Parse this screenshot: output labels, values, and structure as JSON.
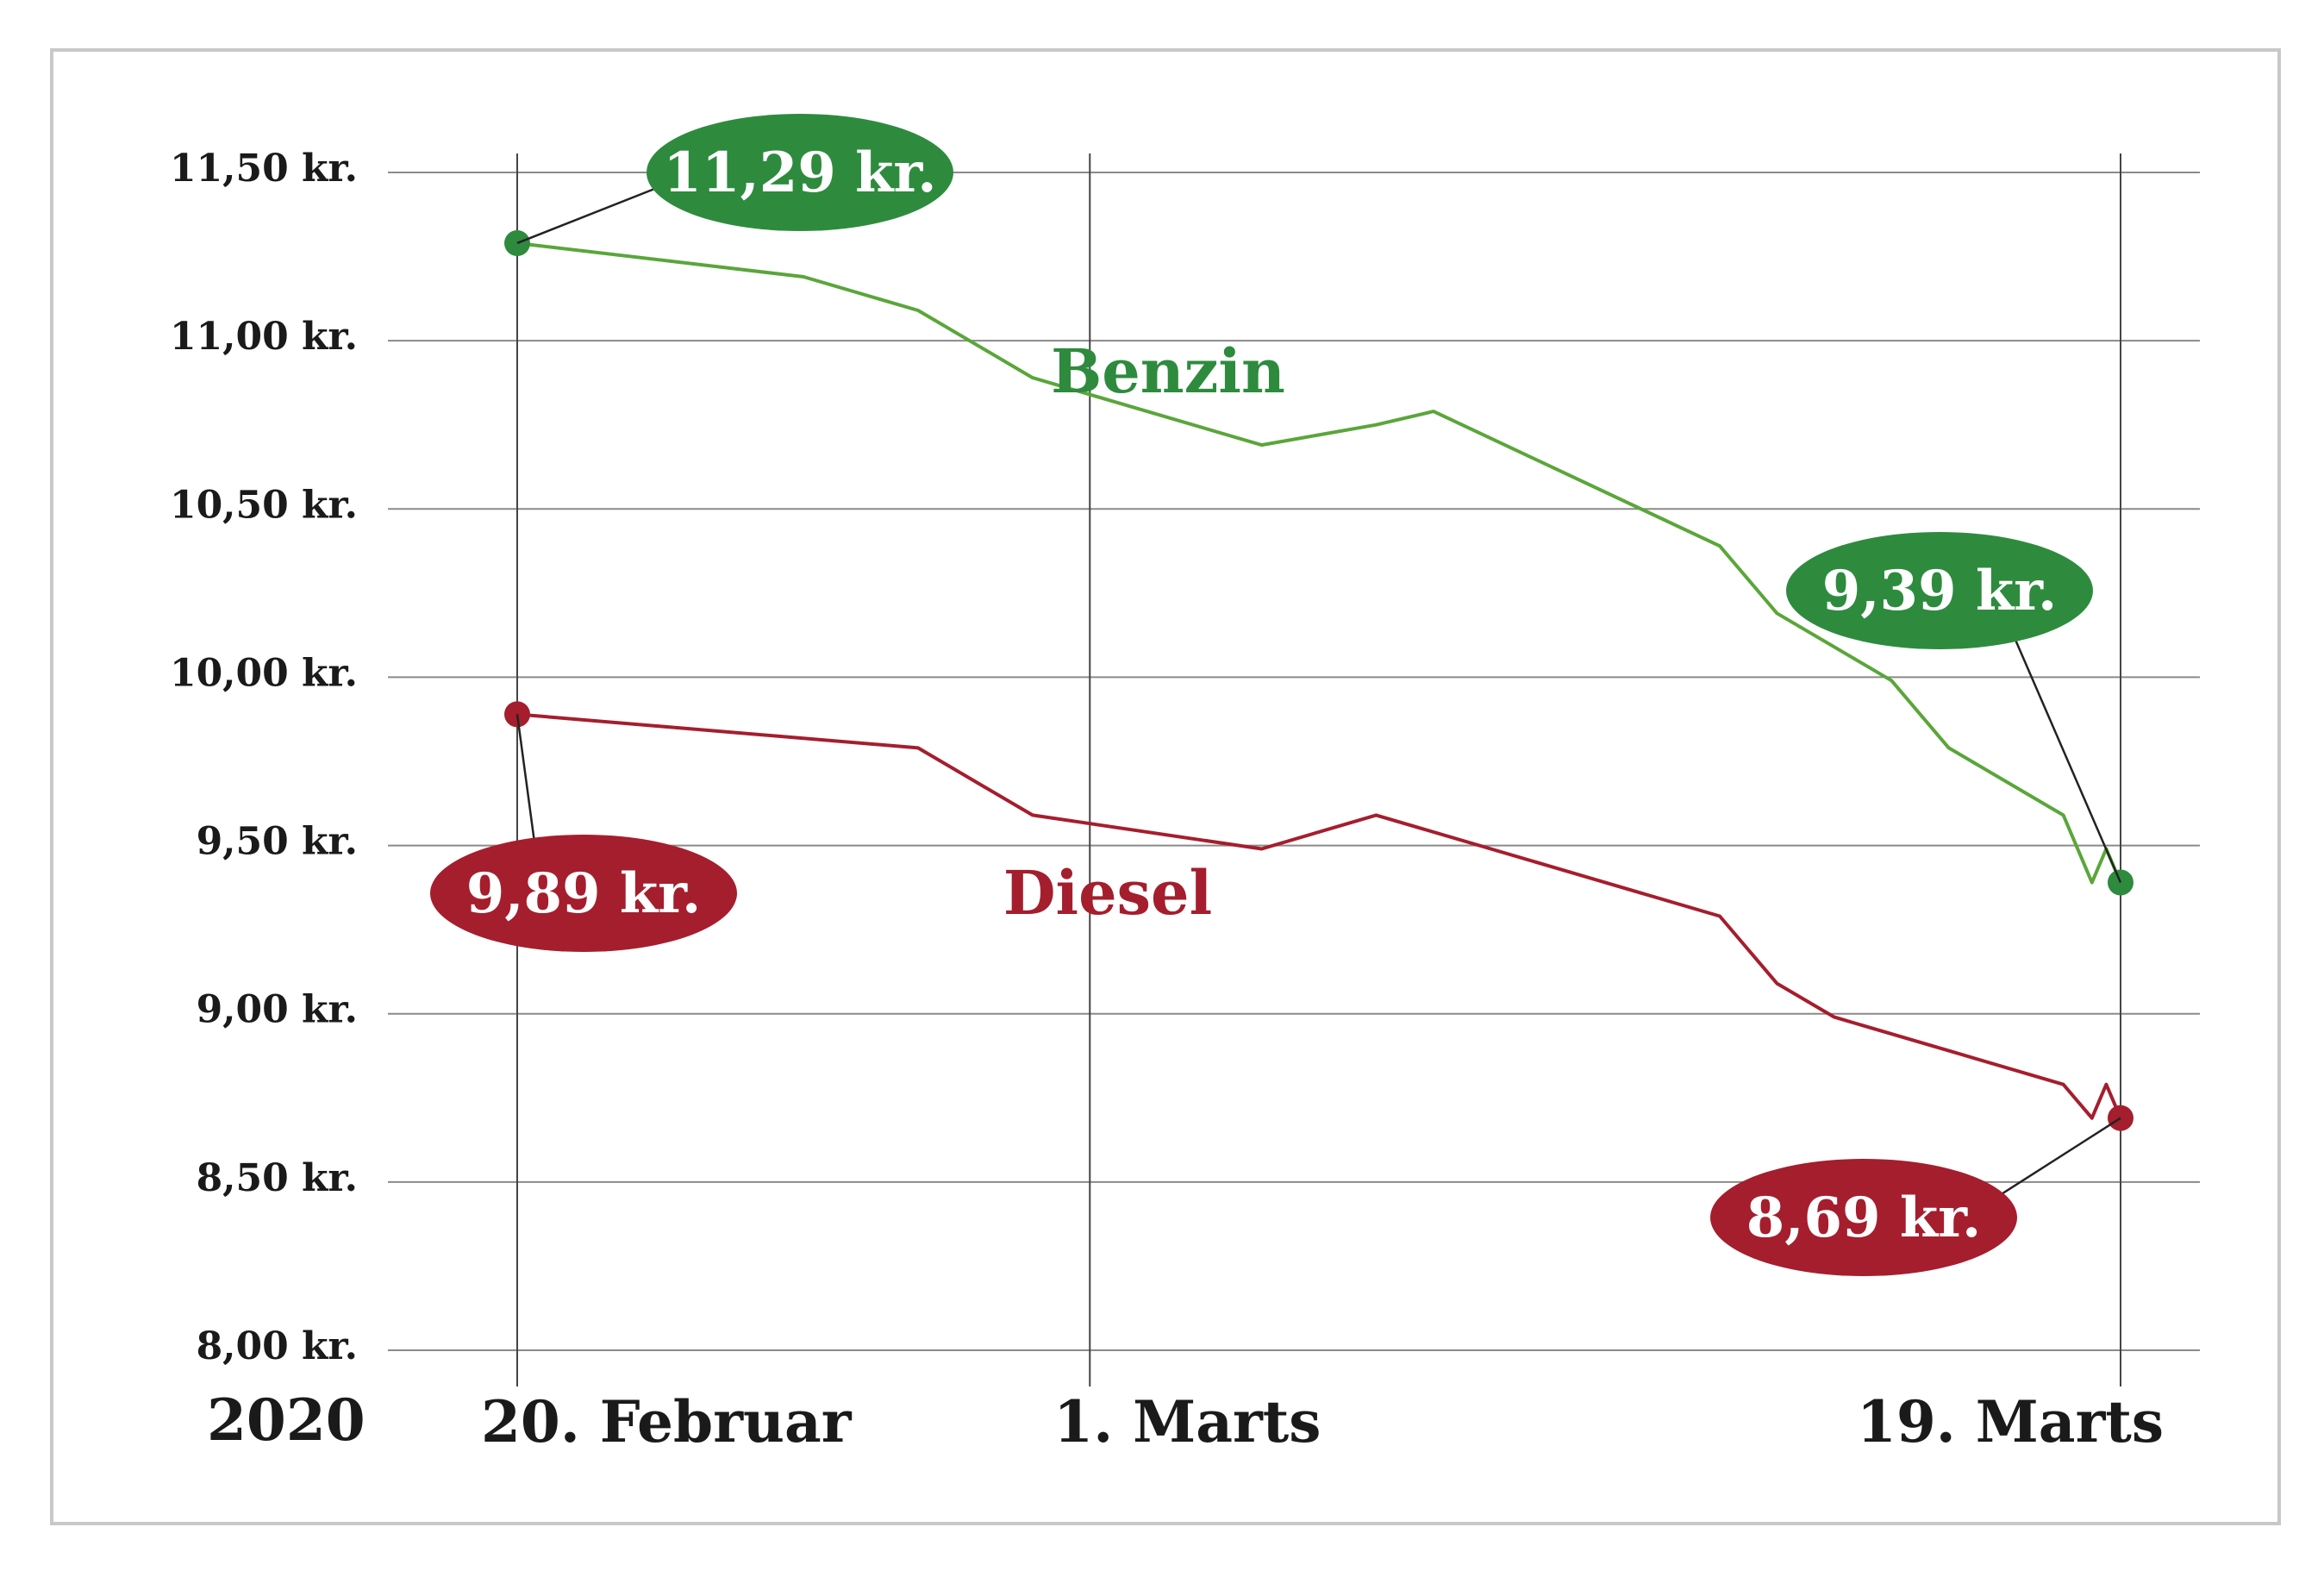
{
  "chart_data": {
    "type": "line",
    "year_label": "2020",
    "x_ticks": [
      {
        "label": "20. Februar",
        "date": "2020-02-20"
      },
      {
        "label": "1. Marts",
        "date": "2020-03-01"
      },
      {
        "label": "19. Marts",
        "date": "2020-03-19"
      }
    ],
    "y_ticks": [
      {
        "label": "8,00 kr.",
        "value": 8.0
      },
      {
        "label": "8,50 kr.",
        "value": 8.5
      },
      {
        "label": "9,00 kr.",
        "value": 9.0
      },
      {
        "label": "9,50 kr.",
        "value": 9.5
      },
      {
        "label": "10,00 kr.",
        "value": 10.0
      },
      {
        "label": "10,50 kr.",
        "value": 10.5
      },
      {
        "label": "11,00 kr.",
        "value": 11.0
      },
      {
        "label": "11,50 kr.",
        "value": 11.5
      }
    ],
    "xlim": [
      "2020-02-20",
      "2020-03-19"
    ],
    "ylim": [
      8.0,
      11.5
    ],
    "grid": "horizontal",
    "series": [
      {
        "name": "Benzin",
        "color": "#2e8b3e",
        "points": [
          {
            "date": "2020-02-20",
            "value": 11.29
          },
          {
            "date": "2020-02-25",
            "value": 11.19
          },
          {
            "date": "2020-02-27",
            "value": 11.09
          },
          {
            "date": "2020-02-29",
            "value": 10.89
          },
          {
            "date": "2020-03-04",
            "value": 10.69
          },
          {
            "date": "2020-03-06",
            "value": 10.75
          },
          {
            "date": "2020-03-07",
            "value": 10.79
          },
          {
            "date": "2020-03-12",
            "value": 10.39
          },
          {
            "date": "2020-03-13",
            "value": 10.19
          },
          {
            "date": "2020-03-15",
            "value": 9.99
          },
          {
            "date": "2020-03-16",
            "value": 9.79
          },
          {
            "date": "2020-03-18",
            "value": 9.59
          },
          {
            "date": "2020-03-18T12:00",
            "value": 9.39
          },
          {
            "date": "2020-03-18T18:00",
            "value": 9.49
          },
          {
            "date": "2020-03-19",
            "value": 9.39
          }
        ],
        "end_labels": {
          "start": "11,29 kr.",
          "end": "9,39 kr."
        }
      },
      {
        "name": "Diesel",
        "color": "#a51e2d",
        "points": [
          {
            "date": "2020-02-20",
            "value": 9.89
          },
          {
            "date": "2020-02-27",
            "value": 9.79
          },
          {
            "date": "2020-02-29",
            "value": 9.59
          },
          {
            "date": "2020-03-04",
            "value": 9.49
          },
          {
            "date": "2020-03-06",
            "value": 9.59
          },
          {
            "date": "2020-03-12",
            "value": 9.29
          },
          {
            "date": "2020-03-13",
            "value": 9.09
          },
          {
            "date": "2020-03-14",
            "value": 8.99
          },
          {
            "date": "2020-03-16",
            "value": 8.89
          },
          {
            "date": "2020-03-18",
            "value": 8.79
          },
          {
            "date": "2020-03-18T12:00",
            "value": 8.69
          },
          {
            "date": "2020-03-18T18:00",
            "value": 8.79
          },
          {
            "date": "2020-03-19",
            "value": 8.69
          }
        ],
        "end_labels": {
          "start": "9,89 kr.",
          "end": "8,69 kr."
        }
      }
    ]
  }
}
